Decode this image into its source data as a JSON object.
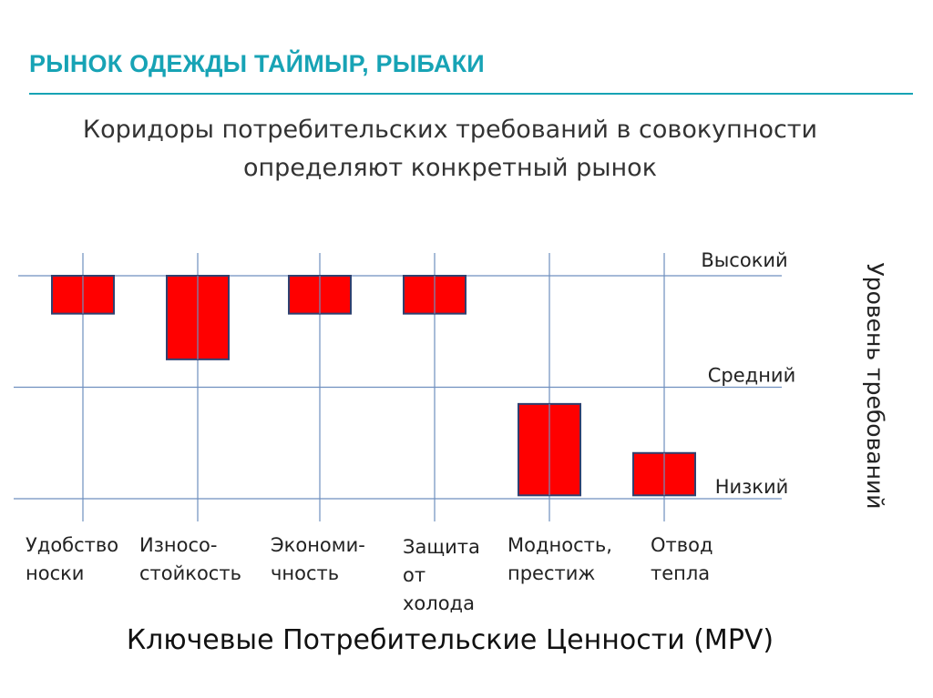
{
  "title": "РЫНОК ОДЕЖДЫ  ТАЙМЫР, РЫБАКИ",
  "subtitle_lines": [
    "Коридоры потребительских требований  в совокупности",
    "определяют конкретный рынок"
  ],
  "footer": "Ключевые Потребительские Ценности (MPV)",
  "colors": {
    "accent": "#17a3b5",
    "bar_fill": "#ff0000",
    "bar_stroke": "#2f4170",
    "grid": "#6f8fbf"
  },
  "chart_data": {
    "type": "bar",
    "y_axis_label": "Уровень требований",
    "levels": [
      {
        "name": "Высокий",
        "value": 3
      },
      {
        "name": "Средний",
        "value": 2
      },
      {
        "name": "Низкий",
        "value": 1
      }
    ],
    "categories": [
      "Удобство\nноски",
      "Износо-\nстойкость",
      "Экономи-\nчность",
      "Защита\nот\nхолода",
      "Модность,\nпрестиж",
      "Отвод\nтепла"
    ],
    "ranges": [
      {
        "high": 3.0,
        "low": 2.66
      },
      {
        "high": 3.0,
        "low": 2.25
      },
      {
        "high": 3.0,
        "low": 2.66
      },
      {
        "high": 3.0,
        "low": 2.66
      },
      {
        "high": 1.85,
        "low": 1.03
      },
      {
        "high": 1.41,
        "low": 1.03
      }
    ]
  }
}
